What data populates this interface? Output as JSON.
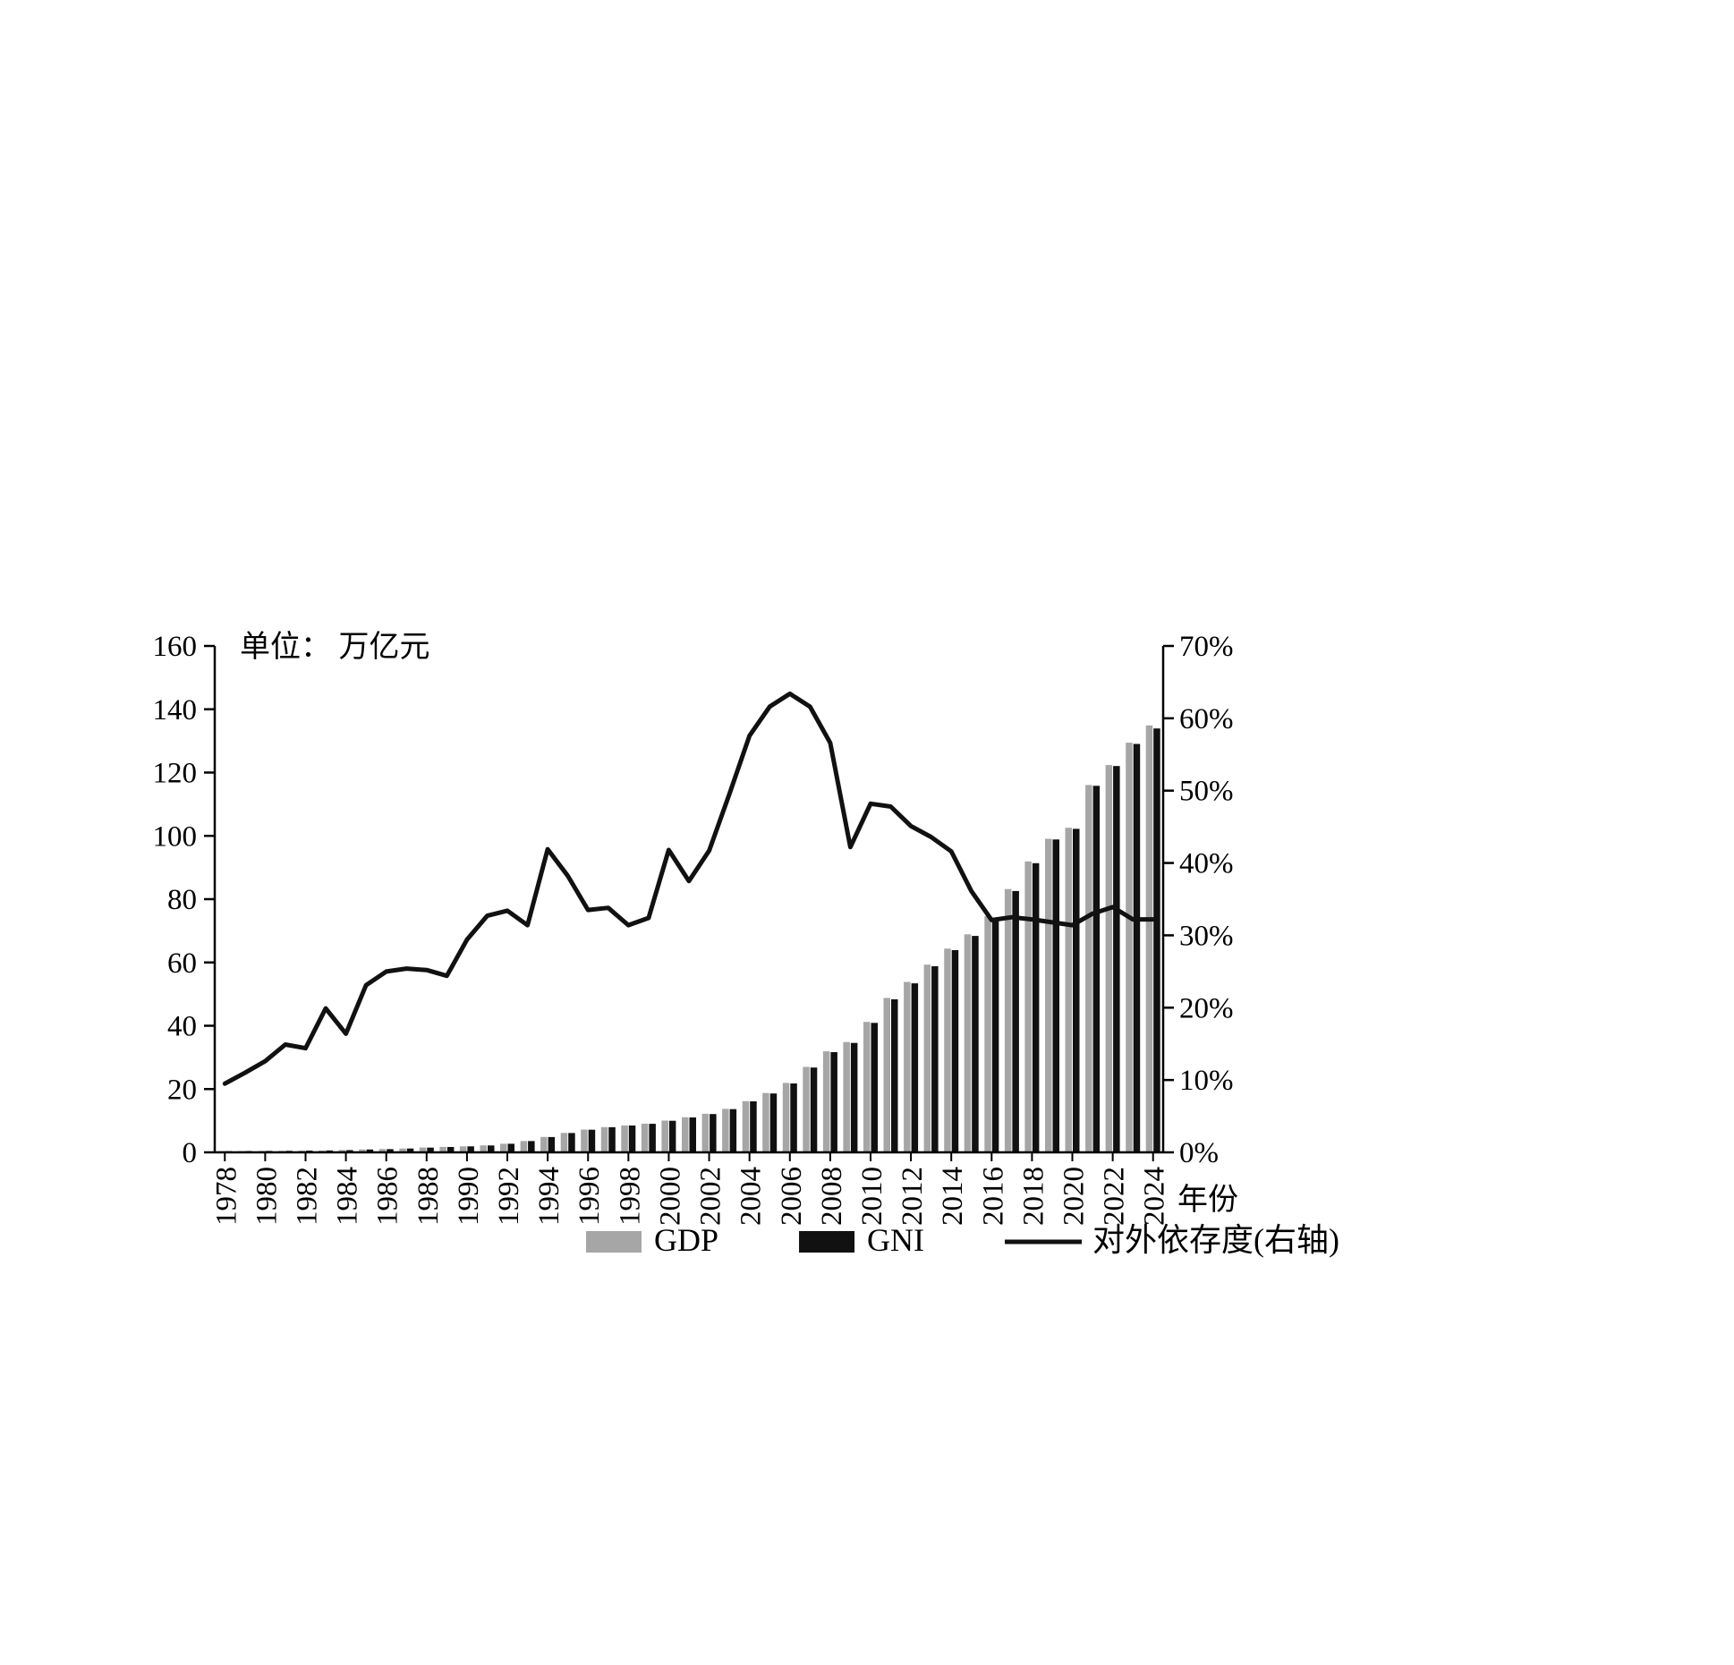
{
  "page": {
    "background": "#ffffff"
  },
  "chart": {
    "unit_label": "单位： 万亿元",
    "x_axis_title": "年份",
    "legend": [
      {
        "key": "gdp",
        "label": "GDP",
        "type": "bar",
        "color": "#a6a6a6"
      },
      {
        "key": "gni",
        "label": "GNI",
        "type": "bar",
        "color": "#111111"
      },
      {
        "key": "dependence",
        "label": "对外依存度(右轴)",
        "type": "line",
        "color": "#111111"
      }
    ]
  },
  "chart_data": {
    "type": "combo",
    "title": "",
    "xlabel": "年份",
    "left_axis": {
      "min": 0,
      "max": 160,
      "step": 20,
      "unit": "万亿元"
    },
    "right_axis": {
      "min": 0,
      "max": 70,
      "step": 10,
      "format": "percent"
    },
    "x_tick_step": 2,
    "grid": false,
    "legend_position": "bottom",
    "categories": [
      1978,
      1979,
      1980,
      1981,
      1982,
      1983,
      1984,
      1985,
      1986,
      1987,
      1988,
      1989,
      1990,
      1991,
      1992,
      1993,
      1994,
      1995,
      1996,
      1997,
      1998,
      1999,
      2000,
      2001,
      2002,
      2003,
      2004,
      2005,
      2006,
      2007,
      2008,
      2009,
      2010,
      2011,
      2012,
      2013,
      2014,
      2015,
      2016,
      2017,
      2018,
      2019,
      2020,
      2021,
      2022,
      2023,
      2024
    ],
    "series": [
      {
        "name": "GDP",
        "type": "bar",
        "axis": "left",
        "color": "#a6a6a6",
        "values": [
          0.37,
          0.41,
          0.46,
          0.49,
          0.54,
          0.6,
          0.73,
          0.91,
          1.04,
          1.22,
          1.52,
          1.72,
          1.89,
          2.2,
          2.72,
          3.57,
          4.86,
          6.13,
          7.18,
          7.97,
          8.52,
          9.06,
          10.03,
          11.09,
          12.17,
          13.74,
          16.18,
          18.73,
          21.94,
          27.01,
          31.92,
          34.85,
          41.21,
          48.79,
          53.86,
          59.3,
          64.36,
          68.89,
          74.64,
          83.2,
          91.93,
          99.07,
          102.56,
          116.07,
          122.38,
          129.43,
          134.91
        ]
      },
      {
        "name": "GNI",
        "type": "bar",
        "axis": "left",
        "color": "#111111",
        "values": [
          0.37,
          0.41,
          0.46,
          0.49,
          0.53,
          0.6,
          0.72,
          0.9,
          1.03,
          1.21,
          1.51,
          1.71,
          1.88,
          2.19,
          2.71,
          3.55,
          4.84,
          6.11,
          7.15,
          7.94,
          8.49,
          9.03,
          9.98,
          11.03,
          12.11,
          13.66,
          16.1,
          18.59,
          21.77,
          26.8,
          31.65,
          34.56,
          40.9,
          48.37,
          53.41,
          58.81,
          63.88,
          68.37,
          74.07,
          82.58,
          91.36,
          98.85,
          102.23,
          115.81,
          122.07,
          129.05,
          133.95
        ]
      },
      {
        "name": "对外依存度(右轴)",
        "type": "line",
        "axis": "right",
        "color": "#111111",
        "values": [
          9.5,
          11.0,
          12.6,
          14.9,
          14.4,
          19.9,
          16.4,
          23.1,
          25.0,
          25.4,
          25.2,
          24.4,
          29.4,
          32.7,
          33.4,
          31.4,
          41.9,
          38.2,
          33.5,
          33.8,
          31.4,
          32.4,
          41.8,
          37.5,
          41.7,
          49.5,
          57.6,
          61.6,
          63.4,
          61.6,
          56.6,
          42.2,
          48.2,
          47.8,
          45.1,
          43.6,
          41.6,
          36.1,
          32.1,
          32.5,
          32.2,
          31.8,
          31.4,
          33.0,
          33.9,
          32.2,
          32.2
        ]
      }
    ]
  }
}
